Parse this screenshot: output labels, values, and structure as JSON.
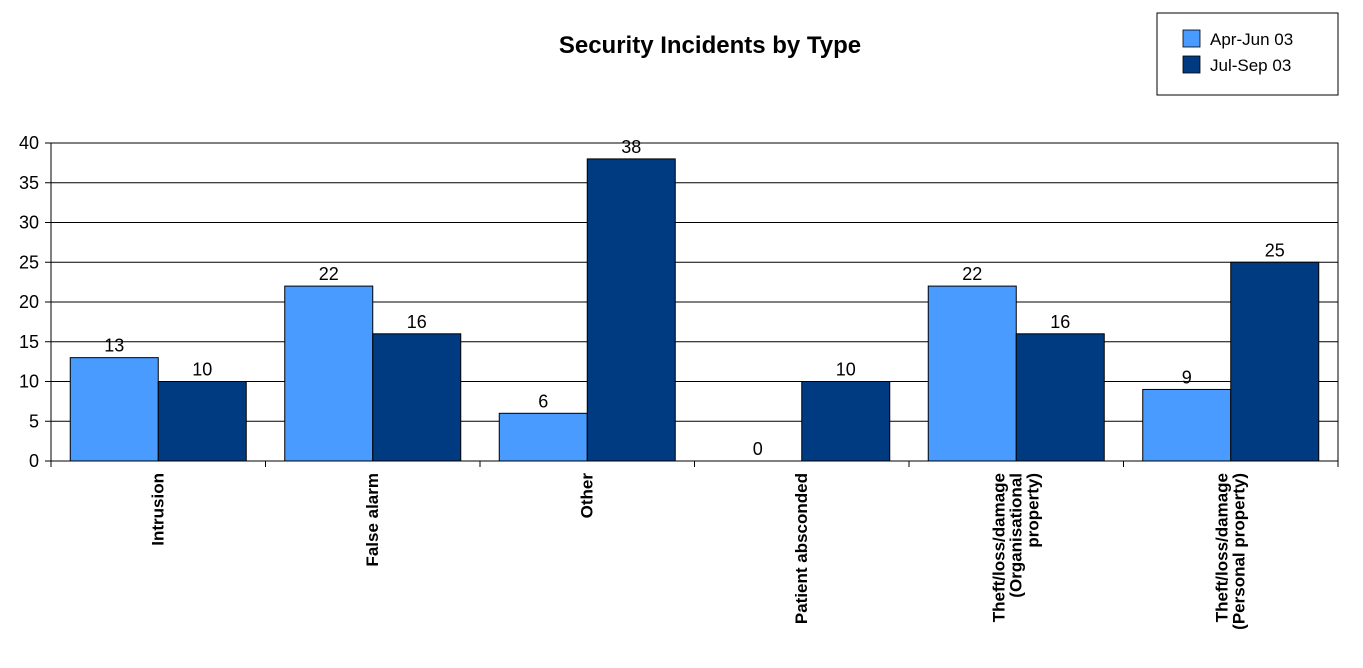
{
  "chart_data": {
    "type": "bar",
    "title": "Security Incidents by Type",
    "xlabel": "",
    "ylabel": "",
    "ylim": [
      0,
      40
    ],
    "yticks": [
      0,
      5,
      10,
      15,
      20,
      25,
      30,
      35,
      40
    ],
    "grid": true,
    "legend_position": "top-right",
    "categories": [
      [
        "Intrusion"
      ],
      [
        "False alarm"
      ],
      [
        "Other"
      ],
      [
        "Patient absconded"
      ],
      [
        "Theft/loss/damage",
        "(Organisational",
        "property)"
      ],
      [
        "Theft/loss/damage",
        "(Personal property)"
      ]
    ],
    "series": [
      {
        "name": "Apr-Jun 03",
        "color": "#4A9BFF",
        "values": [
          13,
          22,
          6,
          0,
          22,
          9
        ]
      },
      {
        "name": "Jul-Sep 03",
        "color": "#003A80",
        "values": [
          10,
          16,
          38,
          10,
          16,
          25
        ]
      }
    ]
  }
}
